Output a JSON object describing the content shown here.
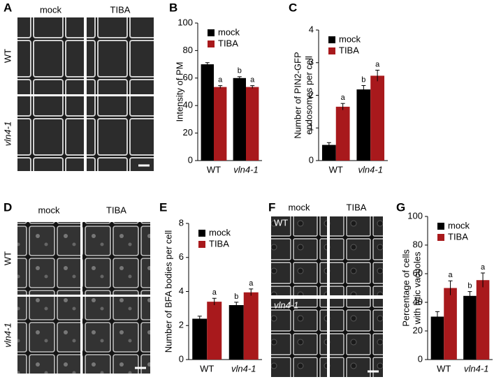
{
  "panels": [
    {
      "label": "A",
      "columns": [
        "mock",
        "TIBA"
      ],
      "rows": [
        "WT",
        "vln4-1"
      ]
    },
    {
      "label": "D",
      "columns": [
        "mock",
        "TIBA"
      ],
      "rows": [
        "WT",
        "vln4-1"
      ]
    },
    {
      "label": "F",
      "columns": [
        "mock",
        "TIBA"
      ],
      "rows": [
        "WT",
        "vln4-1"
      ]
    }
  ],
  "chart_data": [
    {
      "type": "bar",
      "panel_label": "B",
      "ylabel": [
        "Intensity of PM"
      ],
      "categories": [
        "WT",
        "vln4-1"
      ],
      "ylim": [
        0,
        100
      ],
      "yticks": [
        0,
        20,
        40,
        60,
        80,
        100
      ],
      "legend": "upper left",
      "series": [
        {
          "name": "mock",
          "color": "#000000",
          "values": [
            70,
            60
          ],
          "errors": [
            1.2,
            1.0
          ],
          "annotations": [
            null,
            "b"
          ]
        },
        {
          "name": "TIBA",
          "color": "#a8191c",
          "values": [
            53.5,
            53.5
          ],
          "errors": [
            1.0,
            1.0
          ],
          "annotations": [
            "a",
            "a"
          ]
        }
      ]
    },
    {
      "type": "bar",
      "panel_label": "C",
      "ylabel": [
        "Number of PIN2-GFP",
        "endosomes per cell"
      ],
      "categories": [
        "WT",
        "vln4-1"
      ],
      "ylim": [
        0,
        4
      ],
      "yticks": [
        0,
        1,
        2,
        3,
        4
      ],
      "legend": "upper left",
      "series": [
        {
          "name": "mock",
          "color": "#000000",
          "values": [
            0.48,
            2.18
          ],
          "errors": [
            0.07,
            0.12
          ],
          "annotations": [
            null,
            "b"
          ]
        },
        {
          "name": "TIBA",
          "color": "#a8191c",
          "values": [
            1.65,
            2.6
          ],
          "errors": [
            0.1,
            0.17
          ],
          "annotations": [
            "a",
            "a"
          ]
        }
      ]
    },
    {
      "type": "bar",
      "panel_label": "E",
      "ylabel": [
        "Number of BFA bodies per cell"
      ],
      "categories": [
        "WT",
        "vln4-1"
      ],
      "ylim": [
        0,
        8
      ],
      "yticks": [
        0,
        2,
        4,
        6,
        8
      ],
      "legend": "upper left",
      "series": [
        {
          "name": "mock",
          "color": "#000000",
          "values": [
            2.4,
            3.2
          ],
          "errors": [
            0.15,
            0.17
          ],
          "annotations": [
            null,
            "b"
          ]
        },
        {
          "name": "TIBA",
          "color": "#a8191c",
          "values": [
            3.4,
            3.95
          ],
          "errors": [
            0.2,
            0.2
          ],
          "annotations": [
            "a",
            "a"
          ]
        }
      ]
    },
    {
      "type": "bar",
      "panel_label": "G",
      "ylabel": [
        "Percentage of cells",
        "with lytic vacuoles"
      ],
      "categories": [
        "WT",
        "vln4-1"
      ],
      "ylim": [
        0,
        100
      ],
      "yticks": [
        0,
        20,
        40,
        60,
        80,
        100
      ],
      "legend": "upper left",
      "series": [
        {
          "name": "mock",
          "color": "#000000",
          "values": [
            30,
            44.5
          ],
          "errors": [
            3.5,
            3
          ],
          "annotations": [
            null,
            "b"
          ]
        },
        {
          "name": "TIBA",
          "color": "#a8191c",
          "values": [
            50,
            55.5
          ],
          "errors": [
            5,
            5
          ],
          "annotations": [
            "a",
            "a"
          ]
        }
      ]
    }
  ]
}
